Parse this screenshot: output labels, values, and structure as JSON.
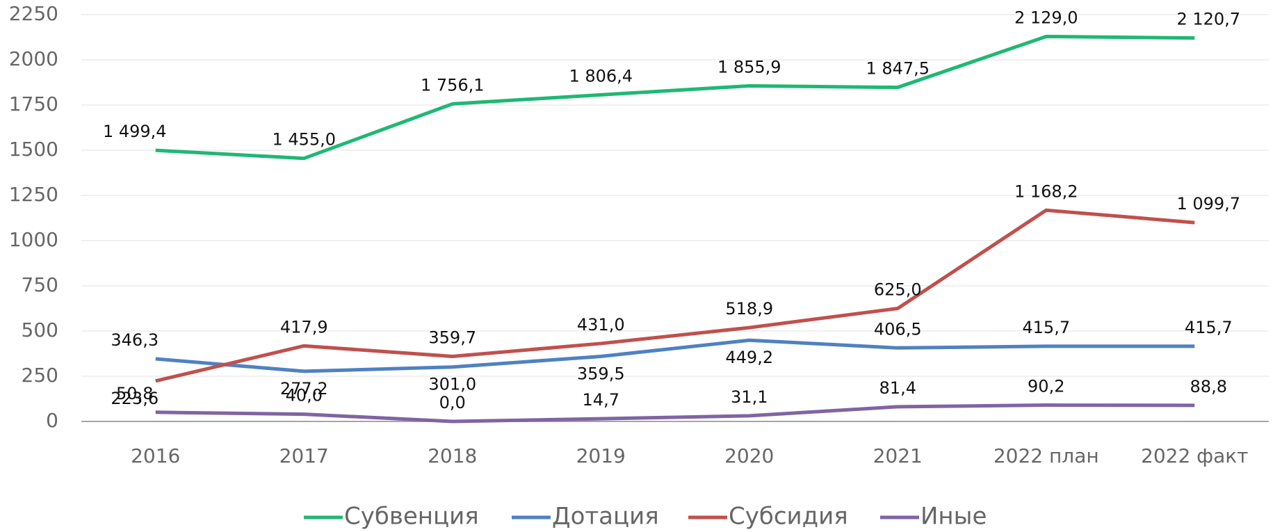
{
  "chart_data": {
    "type": "line",
    "categories": [
      "2016",
      "2017",
      "2018",
      "2019",
      "2020",
      "2021",
      "2022 план",
      "2022 факт"
    ],
    "series": [
      {
        "name": "Субвенция",
        "color": "#1fb874",
        "values": [
          1499.4,
          1455.0,
          1756.1,
          1806.4,
          1855.9,
          1847.5,
          2129.0,
          2120.7
        ],
        "value_labels": [
          "1 499,4",
          "1 455,0",
          "1 756,1",
          "1 806,4",
          "1 855,9",
          "1 847,5",
          "2 129,0",
          "2 120,7"
        ]
      },
      {
        "name": "Дотация",
        "color": "#4f81c2",
        "values": [
          346.3,
          277.2,
          301.0,
          359.5,
          449.2,
          406.5,
          415.7,
          415.7
        ],
        "value_labels": [
          "346,3",
          "277,2",
          "301,0",
          "359,5",
          "449,2",
          "406,5",
          "415,7",
          "415,7"
        ]
      },
      {
        "name": "Субсидия",
        "color": "#c0504d",
        "values": [
          223.6,
          417.9,
          359.7,
          431.0,
          518.9,
          625.0,
          1168.2,
          1099.7
        ],
        "value_labels": [
          "223,6",
          "417,9",
          "359,7",
          "431,0",
          "518,9",
          "625,0",
          "1 168,2",
          "1 099,7"
        ]
      },
      {
        "name": "Иные",
        "color": "#8064a2",
        "values": [
          50.8,
          40.0,
          0.0,
          14.7,
          31.1,
          81.4,
          90.2,
          88.8
        ],
        "value_labels": [
          "50,8",
          "40,0",
          "0,0",
          "14,7",
          "31,1",
          "81,4",
          "90,2",
          "88,8"
        ]
      }
    ],
    "ylim": [
      0,
      2250
    ],
    "yticks": [
      0,
      250,
      500,
      750,
      1000,
      1250,
      1500,
      1750,
      2000,
      2250
    ],
    "grid": true,
    "legend": "bottom"
  }
}
